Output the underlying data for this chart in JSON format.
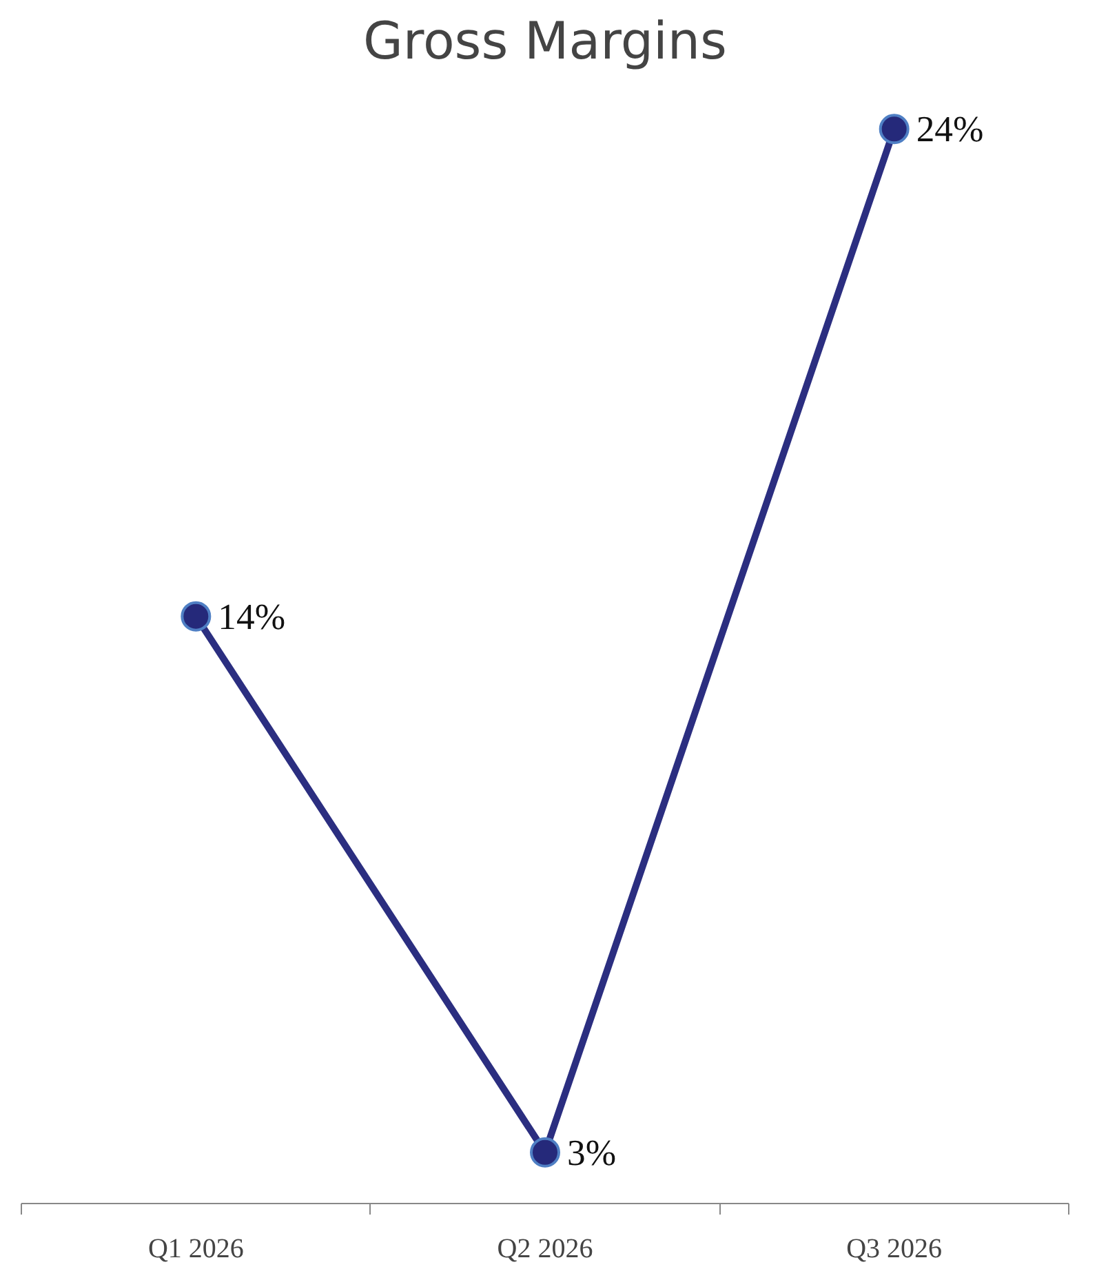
{
  "chart_data": {
    "type": "line",
    "title": "Gross Margins",
    "categories": [
      "Q1 2026",
      "Q2 2026",
      "Q3 2026"
    ],
    "series": [
      {
        "color": "#2b2e80",
        "values": [
          14,
          3,
          24
        ],
        "value_labels": [
          "14%",
          "3%",
          "24%"
        ]
      }
    ],
    "marker": "circle",
    "line_style": "solid",
    "grid": false,
    "tick_labels": "x"
  }
}
